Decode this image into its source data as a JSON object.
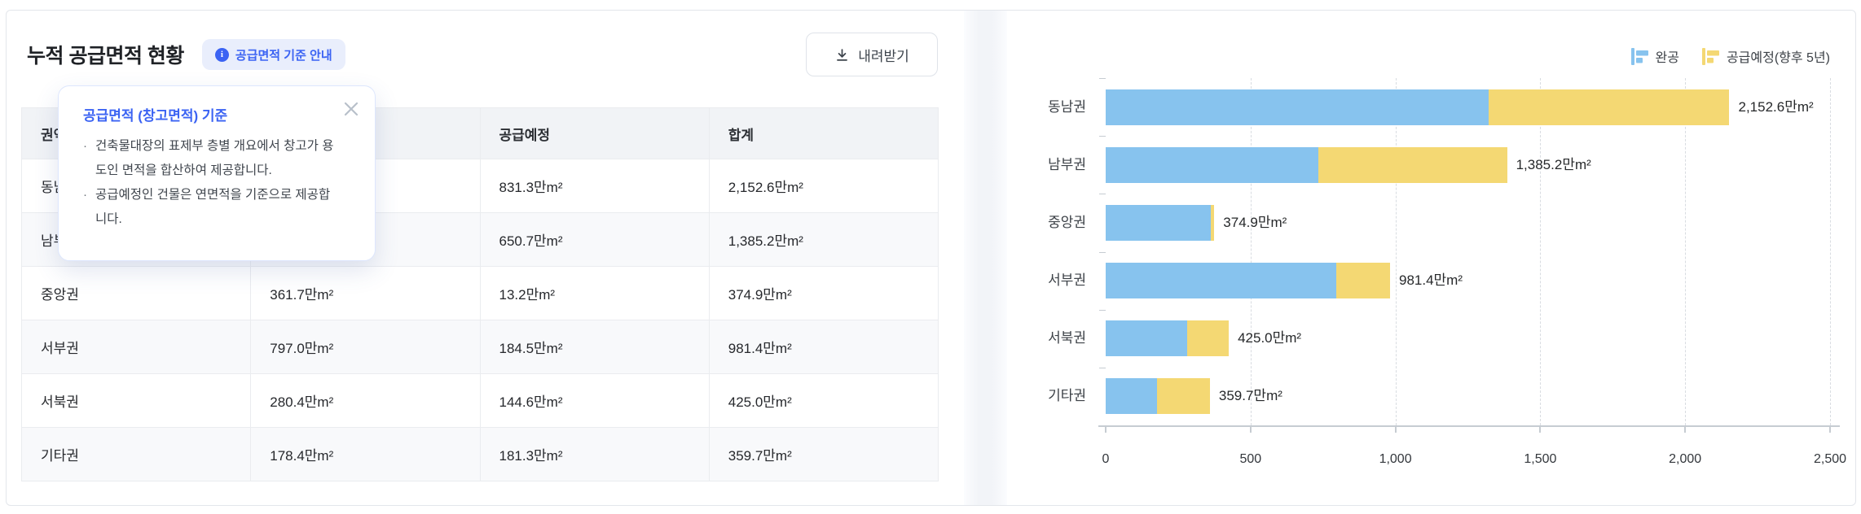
{
  "card": {
    "title": "누적 공급면적 현황",
    "info_badge_label": "공급면적 기준 안내",
    "download_label": "내려받기"
  },
  "table": {
    "columns": [
      "권역",
      "완공",
      "공급예정",
      "합계"
    ],
    "rows": [
      {
        "region": "동남권",
        "completed": "",
        "planned": "831.3만m²",
        "total": "2,152.6만m²"
      },
      {
        "region": "남부권",
        "completed": "",
        "planned": "650.7만m²",
        "total": "1,385.2만m²"
      },
      {
        "region": "중앙권",
        "completed": "361.7만m²",
        "planned": "13.2만m²",
        "total": "374.9만m²"
      },
      {
        "region": "서부권",
        "completed": "797.0만m²",
        "planned": "184.5만m²",
        "total": "981.4만m²"
      },
      {
        "region": "서북권",
        "completed": "280.4만m²",
        "planned": "144.6만m²",
        "total": "425.0만m²"
      },
      {
        "region": "기타권",
        "completed": "178.4만m²",
        "planned": "181.3만m²",
        "total": "359.7만m²"
      }
    ]
  },
  "tooltip": {
    "title": "공급면적 (창고면적) 기준",
    "bullets": [
      "건축물대장의 표제부 층별 개요에서 창고가 용도인 면적을 합산하여 제공합니다.",
      "공급예정인 건물은 연면적을 기준으로 제공합니다."
    ]
  },
  "chart_data": {
    "type": "bar",
    "orientation": "horizontal",
    "stacked": true,
    "categories": [
      "동남권",
      "남부권",
      "중앙권",
      "서부권",
      "서북권",
      "기타권"
    ],
    "series": [
      {
        "name": "완공",
        "color": "#87c3ee",
        "values": [
          1321.3,
          734.5,
          361.7,
          797.0,
          280.4,
          178.4
        ]
      },
      {
        "name": "공급예정(향후 5년)",
        "color": "#f4d873",
        "values": [
          831.3,
          650.7,
          13.2,
          184.5,
          144.6,
          181.3
        ]
      }
    ],
    "totals": [
      2152.6,
      1385.2,
      374.9,
      981.4,
      425.0,
      359.7
    ],
    "total_labels": [
      "2,152.6만m²",
      "1,385.2만m²",
      "374.9만m²",
      "981.4만m²",
      "425.0만m²",
      "359.7만m²"
    ],
    "x_tick_values": [
      0,
      500,
      1000,
      1500,
      2000,
      2500
    ],
    "x_tick_labels": [
      "0",
      "500",
      "1,000",
      "1,500",
      "2,000",
      "2,500"
    ],
    "xlim": [
      0,
      2500
    ],
    "grid": "vertical-dashed",
    "legend_position": "top-right",
    "unit": "만m²"
  },
  "colors": {
    "completed": "#87c3ee",
    "planned": "#f4d873",
    "accent_blue": "#3b63f3",
    "badge_bg": "#e9eefc"
  }
}
